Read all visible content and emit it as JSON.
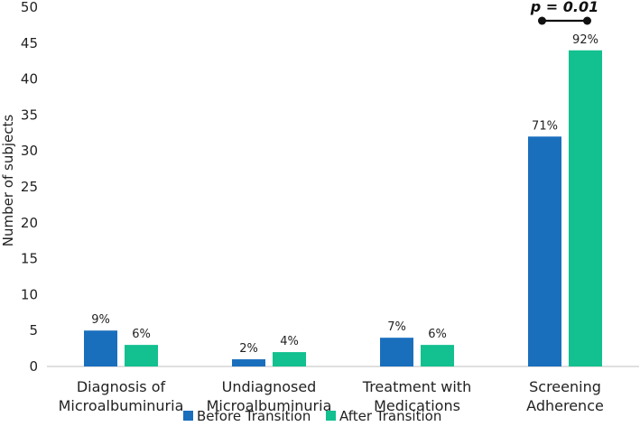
{
  "chart_data": {
    "type": "bar",
    "categories": [
      [
        "Diagnosis of",
        "Microalbuminuria"
      ],
      [
        "Undiagnosed",
        "Microalbuminuria"
      ],
      [
        "Treatment with",
        "Medications"
      ],
      [
        "Screening",
        "Adherence"
      ]
    ],
    "series": [
      {
        "name": "Before Transition",
        "color": "#1a6fbd",
        "values": [
          5,
          1,
          4,
          32
        ],
        "labels": [
          "9%",
          "2%",
          "7%",
          "71%"
        ]
      },
      {
        "name": "After Transition",
        "color": "#13c08f",
        "values": [
          3,
          2,
          3,
          44
        ],
        "labels": [
          "6%",
          "4%",
          "6%",
          "92%"
        ]
      }
    ],
    "ylabel": "Number of subjects",
    "ylim": [
      0,
      50
    ],
    "yticks": [
      "0",
      "5",
      "10",
      "15",
      "20",
      "25",
      "30",
      "35",
      "40",
      "45",
      "50"
    ],
    "grid": false,
    "legend": "bottom",
    "annotation": {
      "text": "p = 0.01",
      "category": 3
    }
  }
}
